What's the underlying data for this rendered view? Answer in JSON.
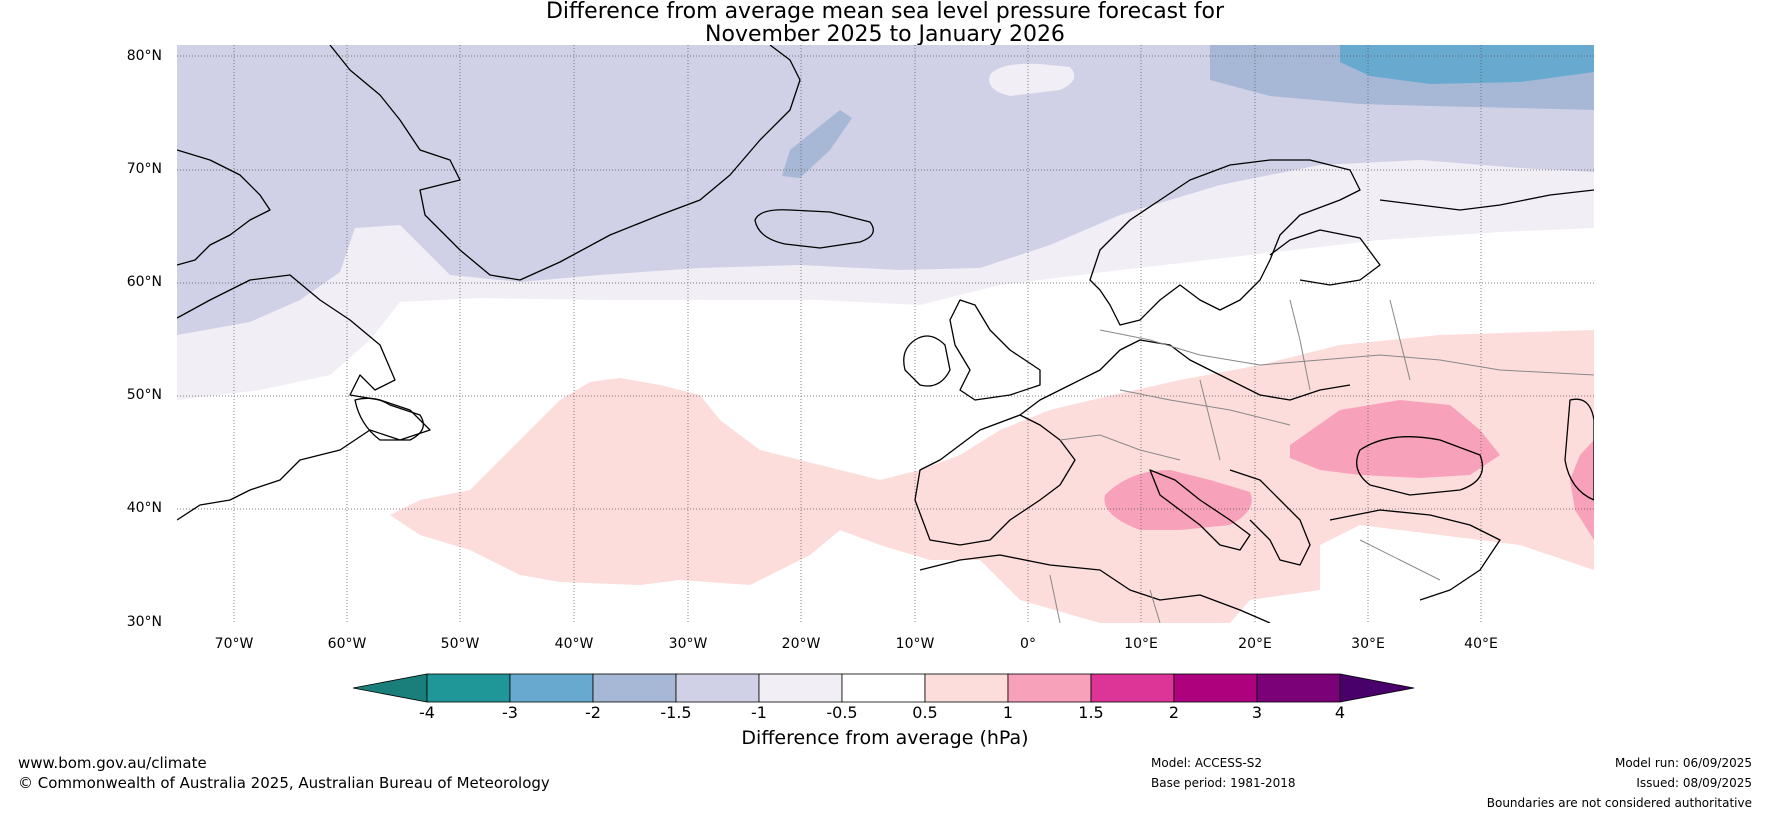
{
  "title_line1": "Difference from average mean sea level pressure forecast for",
  "title_line2": "November 2025 to January 2026",
  "lat_labels": [
    "80°N",
    "70°N",
    "60°N",
    "50°N",
    "40°N",
    "30°N"
  ],
  "lon_labels": [
    "70°W",
    "60°W",
    "50°W",
    "40°W",
    "30°W",
    "20°W",
    "10°W",
    "0°",
    "10°E",
    "20°E",
    "30°E",
    "40°E"
  ],
  "colorbar": {
    "title": "Difference from average (hPa)",
    "ticks": [
      "-4",
      "-3",
      "-2",
      "-1.5",
      "-1",
      "-0.5",
      "0.5",
      "1",
      "1.5",
      "2",
      "3",
      "4"
    ],
    "colors": [
      "#1a7f7a",
      "#1f9698",
      "#67a9cf",
      "#a6b8d6",
      "#d0d1e6",
      "#f1eef6",
      "#ffffff",
      "#fddcdc",
      "#f7a1ba",
      "#dd3497",
      "#ae017e",
      "#7a0177",
      "#49006a"
    ]
  },
  "footer": {
    "website": "www.bom.gov.au/climate",
    "copyright": "© Commonwealth of Australia 2025, Australian Bureau of Meteorology",
    "model": "Model: ACCESS-S2",
    "base_period": "Base period: 1981-2018",
    "model_run": "Model run: 06/09/2025",
    "issued": "Issued: 08/09/2025",
    "disclaimer": "Boundaries are not considered authoritative"
  }
}
